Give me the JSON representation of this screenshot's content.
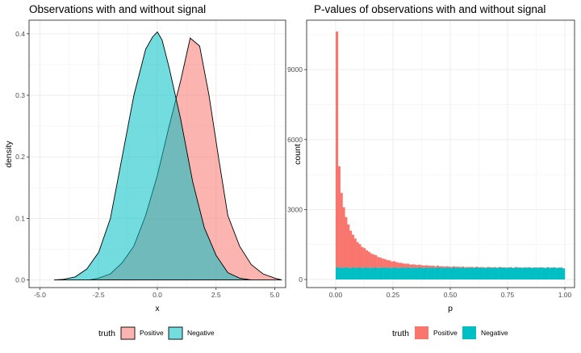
{
  "chart_data": [
    {
      "type": "area",
      "title": "Observations with and without signal",
      "xlabel": "x",
      "ylabel": "density",
      "xlim": [
        -5.0,
        5.5
      ],
      "ylim": [
        0,
        0.4
      ],
      "x_ticks": [
        "-5.0",
        "-2.5",
        "0.0",
        "2.5",
        "5.0"
      ],
      "y_ticks": [
        "0.0",
        "0.1",
        "0.2",
        "0.3",
        "0.4"
      ],
      "legend": {
        "title": "truth",
        "position": "bottom"
      },
      "series": [
        {
          "name": "Positive",
          "color": "#F8766D",
          "x": [
            -2.9,
            -2.5,
            -2.0,
            -1.5,
            -1.0,
            -0.5,
            0.0,
            0.5,
            1.0,
            1.4,
            1.8,
            2.2,
            2.6,
            3.0,
            3.5,
            4.0,
            4.5,
            5.0,
            5.3
          ],
          "y": [
            0.0,
            0.003,
            0.01,
            0.028,
            0.055,
            0.105,
            0.17,
            0.25,
            0.325,
            0.393,
            0.38,
            0.3,
            0.2,
            0.105,
            0.055,
            0.025,
            0.01,
            0.003,
            0.0
          ]
        },
        {
          "name": "Negative",
          "color": "#00BFC4",
          "x": [
            -4.4,
            -4.0,
            -3.5,
            -3.0,
            -2.5,
            -2.0,
            -1.5,
            -1.0,
            -0.5,
            -0.2,
            0.0,
            0.2,
            0.5,
            1.0,
            1.5,
            2.0,
            2.5,
            3.0,
            3.5,
            4.0
          ],
          "y": [
            0.0,
            0.001,
            0.005,
            0.018,
            0.045,
            0.1,
            0.2,
            0.3,
            0.375,
            0.395,
            0.403,
            0.39,
            0.345,
            0.26,
            0.16,
            0.085,
            0.04,
            0.012,
            0.003,
            0.0
          ]
        }
      ]
    },
    {
      "type": "bar",
      "title": "P-values of observations with and without signal",
      "xlabel": "p",
      "ylabel": "count",
      "xlim": [
        0,
        1
      ],
      "ylim": [
        0,
        10600
      ],
      "x_ticks": [
        "0.00",
        "0.25",
        "0.50",
        "0.75",
        "1.00"
      ],
      "y_ticks": [
        "0",
        "3000",
        "6000",
        "9000"
      ],
      "legend": {
        "title": "truth",
        "position": "bottom"
      },
      "bin_width": 0.01,
      "stacked": true,
      "series": [
        {
          "name": "Positive",
          "color": "#F8766D",
          "values": [
            10100,
            4350,
            3200,
            2600,
            2150,
            1850,
            1600,
            1400,
            1250,
            1100,
            1000,
            900,
            820,
            750,
            680,
            620,
            570,
            520,
            470,
            430,
            390,
            360,
            330,
            310,
            280,
            260,
            240,
            220,
            200,
            185,
            170,
            160,
            150,
            140,
            130,
            120,
            115,
            110,
            100,
            95,
            90,
            85,
            80,
            75,
            70,
            66,
            62,
            58,
            55,
            52,
            49,
            46,
            43,
            41,
            39,
            37,
            35,
            33,
            31,
            29,
            28,
            27,
            26,
            25,
            24,
            23,
            22,
            21,
            20,
            19,
            19,
            18,
            18,
            17,
            17,
            16,
            16,
            15,
            15,
            14,
            14,
            13,
            13,
            12,
            12,
            12,
            11,
            11,
            11,
            10,
            10,
            10,
            9,
            9,
            9,
            8,
            8,
            8,
            8,
            8
          ]
        },
        {
          "name": "Negative",
          "color": "#00BFC4",
          "values": [
            530,
            505,
            515,
            498,
            522,
            510,
            495,
            520,
            508,
            502,
            518,
            492,
            525,
            500,
            512,
            497,
            506,
            521,
            494,
            509,
            503,
            517,
            499,
            511,
            490,
            524,
            505,
            496,
            514,
            501,
            508,
            519,
            493,
            506,
            512,
            498,
            522,
            504,
            495,
            516,
            507,
            500,
            513,
            491,
            526,
            503,
            509,
            497,
            515,
            502,
            494,
            520,
            506,
            511,
            499,
            518,
            493,
            507,
            504,
            514,
            496,
            523,
            500,
            510,
            505,
            492,
            517,
            508,
            501,
            513,
            495,
            519,
            503,
            510,
            498,
            506,
            515,
            490,
            521,
            504,
            509,
            497,
            512,
            502,
            518,
            494,
            507,
            511,
            500,
            516,
            505,
            493,
            520,
            499,
            508,
            514,
            496,
            503,
            510,
            470
          ]
        }
      ]
    }
  ]
}
